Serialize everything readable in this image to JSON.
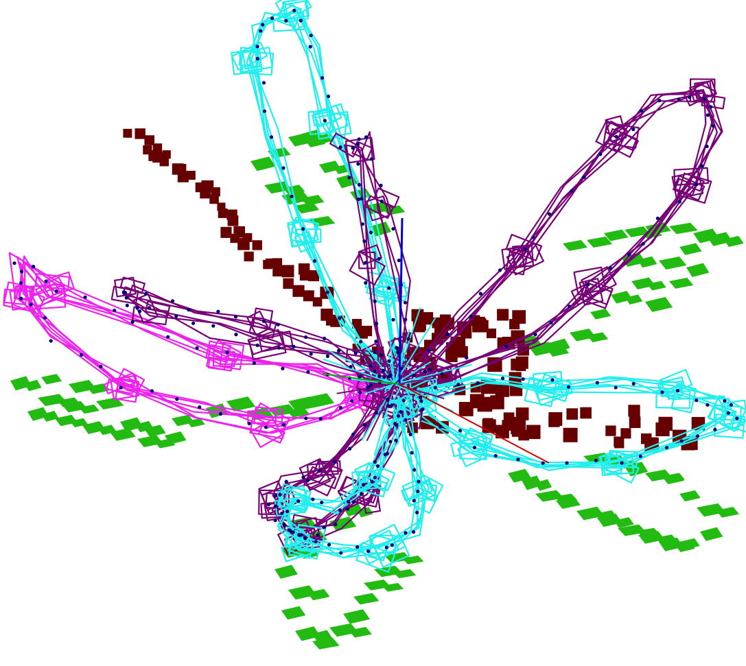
{
  "scene": {
    "background": "#ffffff",
    "colors": {
      "shadow_green": "#22bb11",
      "voxel_maroon": "#660000",
      "wire_cyan": "#22eeee",
      "wire_purple": "#770077",
      "wire_magenta": "#ee22ee",
      "node_navy": "#000077",
      "axis_blue": "#0000cc",
      "axis_red": "#cc0000",
      "axis_green": "#00aa00"
    },
    "axes": [
      "x-axis",
      "y-axis",
      "z-axis"
    ],
    "petal_groups": [
      {
        "name": "cyan-upper-petal",
        "color_key": "wire_cyan"
      },
      {
        "name": "purple-right-petal",
        "color_key": "wire_purple"
      },
      {
        "name": "magenta-left-petal",
        "color_key": "wire_magenta"
      },
      {
        "name": "cyan-right-petal",
        "color_key": "wire_cyan"
      },
      {
        "name": "purple-lower-petal",
        "color_key": "wire_purple"
      },
      {
        "name": "cyan-lower-petal",
        "color_key": "wire_cyan"
      },
      {
        "name": "purple-mid-petal",
        "color_key": "wire_purple"
      },
      {
        "name": "purple-left-strand",
        "color_key": "wire_purple"
      }
    ],
    "voxel_groups": [
      "maroon-voxel-diagonal",
      "maroon-voxel-center"
    ],
    "shadow_groups": [
      "green-shadow-left",
      "green-shadow-right",
      "green-shadow-bottom",
      "green-shadow-upper"
    ]
  }
}
